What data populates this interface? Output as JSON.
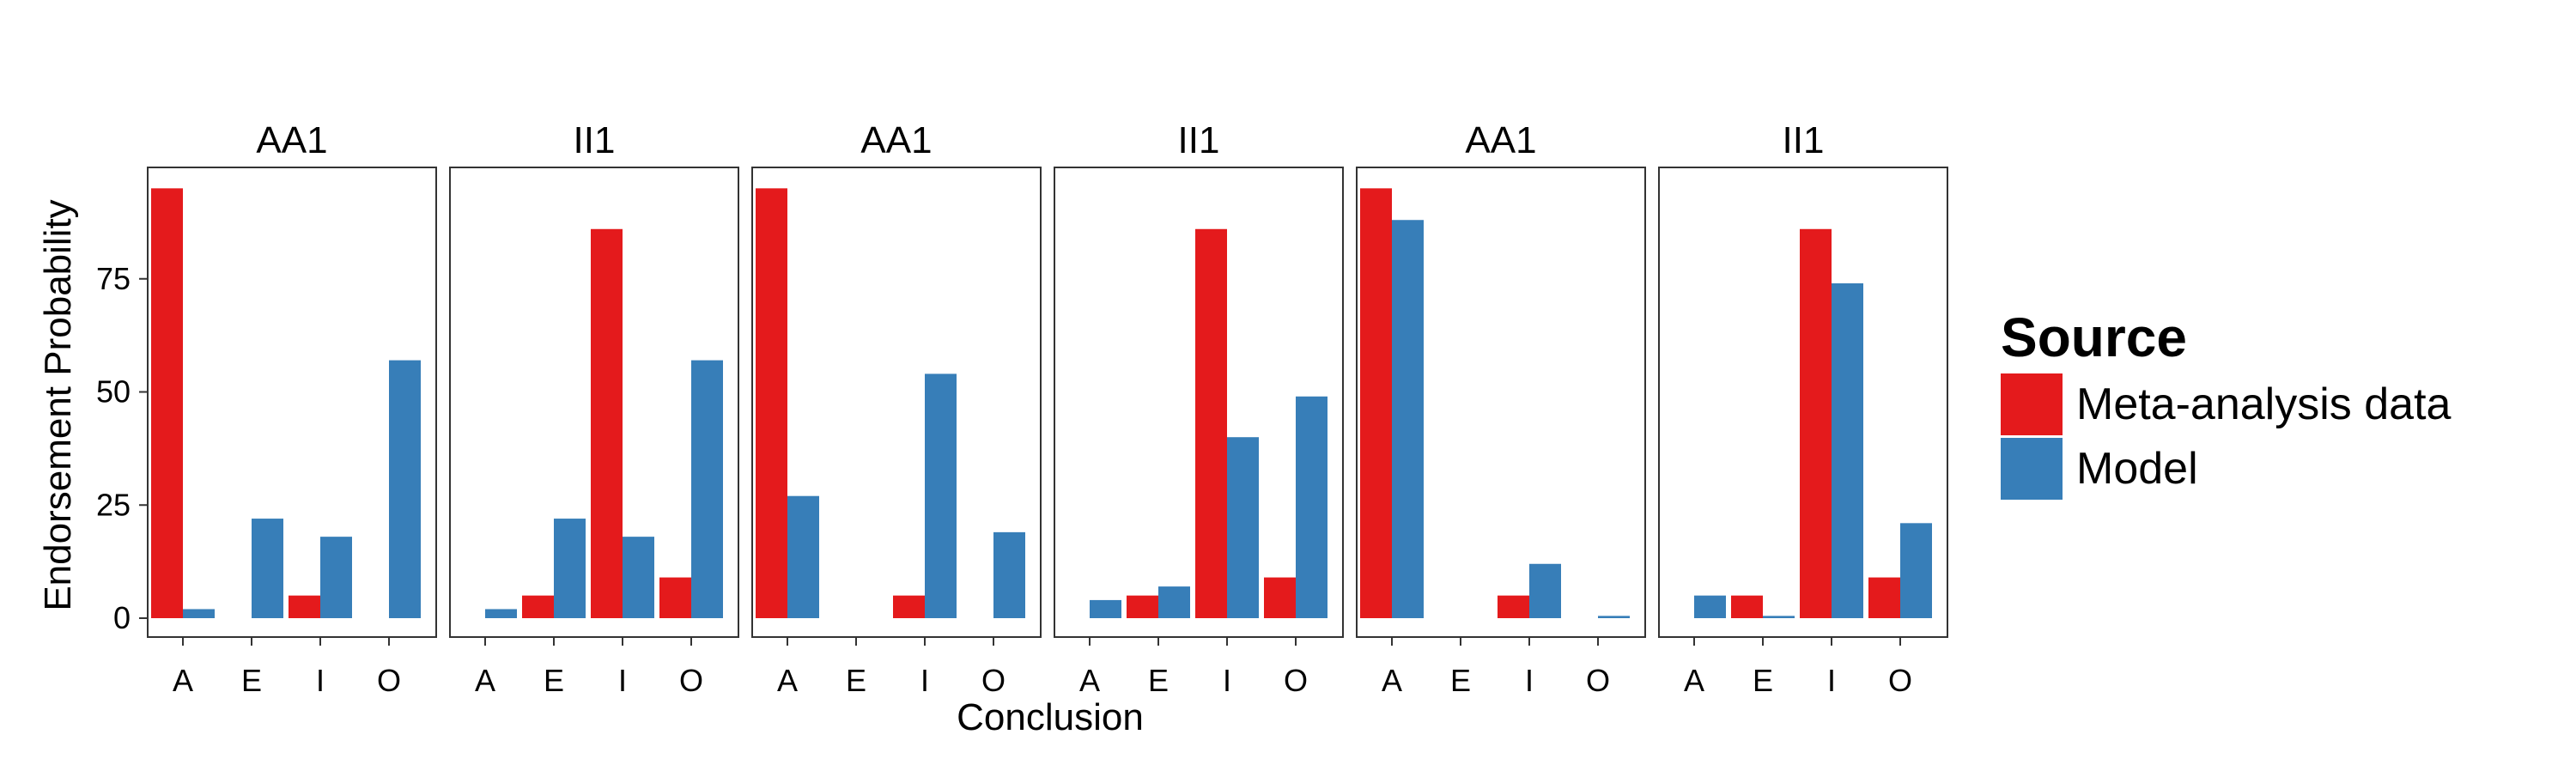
{
  "chart_data": {
    "type": "bar",
    "categories": [
      "A",
      "E",
      "I",
      "O"
    ],
    "xlabel": "Conclusion",
    "ylabel": "Endorsement Probability",
    "ylim": [
      0,
      100
    ],
    "yticks": [
      0,
      25,
      50,
      75
    ],
    "grid": false,
    "legend": {
      "title": "Source",
      "position": "right",
      "entries": [
        {
          "name": "Meta-analysis data",
          "color": "#E41A1C"
        },
        {
          "name": "Model",
          "color": "#377EB8"
        }
      ]
    },
    "panels": [
      {
        "title": "AA1",
        "series": [
          {
            "name": "Meta-analysis data",
            "values": [
              95,
              0,
              5,
              0
            ]
          },
          {
            "name": "Model",
            "values": [
              2,
              22,
              18,
              57
            ]
          }
        ]
      },
      {
        "title": "II1",
        "series": [
          {
            "name": "Meta-analysis data",
            "values": [
              0,
              5,
              86,
              9
            ]
          },
          {
            "name": "Model",
            "values": [
              2,
              22,
              18,
              57
            ]
          }
        ]
      },
      {
        "title": "AA1",
        "series": [
          {
            "name": "Meta-analysis data",
            "values": [
              95,
              0,
              5,
              0
            ]
          },
          {
            "name": "Model",
            "values": [
              27,
              0,
              54,
              19
            ]
          }
        ]
      },
      {
        "title": "II1",
        "series": [
          {
            "name": "Meta-analysis data",
            "values": [
              0,
              5,
              86,
              9
            ]
          },
          {
            "name": "Model",
            "values": [
              4,
              7,
              40,
              49
            ]
          }
        ]
      },
      {
        "title": "AA1",
        "series": [
          {
            "name": "Meta-analysis data",
            "values": [
              95,
              0,
              5,
              0
            ]
          },
          {
            "name": "Model",
            "values": [
              88,
              0,
              12,
              0.5
            ]
          }
        ]
      },
      {
        "title": "II1",
        "series": [
          {
            "name": "Meta-analysis data",
            "values": [
              0,
              5,
              86,
              9
            ]
          },
          {
            "name": "Model",
            "values": [
              5,
              0.5,
              74,
              21
            ]
          }
        ]
      }
    ]
  }
}
